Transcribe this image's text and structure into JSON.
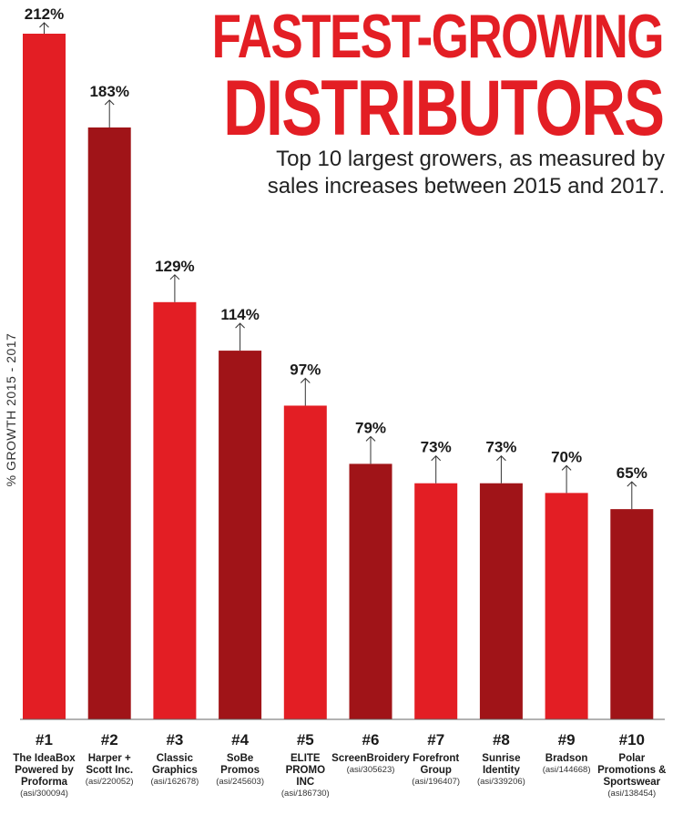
{
  "chart_data": {
    "type": "bar",
    "title": "FASTEST-GROWING DISTRIBUTORS",
    "title_lines": [
      "FASTEST-GROWING",
      "DISTRIBUTORS"
    ],
    "subtitle": "Top 10 largest growers, as measured by sales increases between 2015 and 2017.",
    "ylabel": "% GROWTH 2015 - 2017",
    "xlabel": "",
    "ylim": [
      0,
      212
    ],
    "colors": [
      "#e31e24",
      "#a01418"
    ],
    "grid": false,
    "categories": [
      {
        "rank": "#1",
        "name": [
          "The IdeaBox",
          "Powered by",
          "Proforma"
        ],
        "asi": "(asi/300094)",
        "value": 212,
        "label": "212%"
      },
      {
        "rank": "#2",
        "name": [
          "Harper +",
          "Scott Inc."
        ],
        "asi": "(asi/220052)",
        "value": 183,
        "label": "183%"
      },
      {
        "rank": "#3",
        "name": [
          "Classic",
          "Graphics"
        ],
        "asi": "(asi/162678)",
        "value": 129,
        "label": "129%"
      },
      {
        "rank": "#4",
        "name": [
          "SoBe",
          "Promos"
        ],
        "asi": "(asi/245603)",
        "value": 114,
        "label": "114%"
      },
      {
        "rank": "#5",
        "name": [
          "ELITE",
          "PROMO",
          "INC"
        ],
        "asi": "(asi/186730)",
        "value": 97,
        "label": "97%"
      },
      {
        "rank": "#6",
        "name": [
          "ScreenBroidery"
        ],
        "asi": "(asi/305623)",
        "value": 79,
        "label": "79%"
      },
      {
        "rank": "#7",
        "name": [
          "Forefront",
          "Group"
        ],
        "asi": "(asi/196407)",
        "value": 73,
        "label": "73%"
      },
      {
        "rank": "#8",
        "name": [
          "Sunrise",
          "Identity"
        ],
        "asi": "(asi/339206)",
        "value": 73,
        "label": "73%"
      },
      {
        "rank": "#9",
        "name": [
          "Bradson"
        ],
        "asi": "(asi/144668)",
        "value": 70,
        "label": "70%"
      },
      {
        "rank": "#10",
        "name": [
          "Polar",
          "Promotions &",
          "Sportswear"
        ],
        "asi": "(asi/138454)",
        "value": 65,
        "label": "65%"
      }
    ]
  }
}
